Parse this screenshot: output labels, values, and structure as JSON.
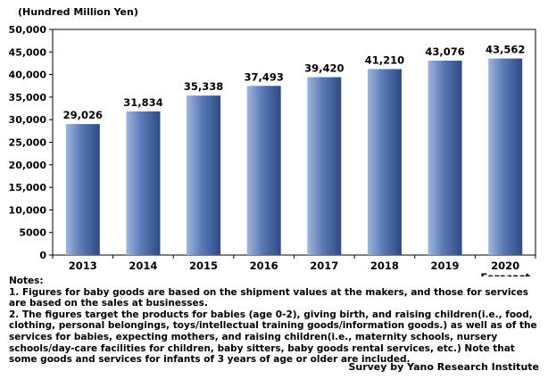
{
  "chart_data": {
    "type": "bar",
    "unit_label": "(Hundred Million Yen)",
    "categories": [
      "2013",
      "2014",
      "2015",
      "2016",
      "2017",
      "2018",
      "2019",
      "2020"
    ],
    "category_sublabels": [
      "",
      "",
      "",
      "",
      "",
      "",
      "",
      "Forecast"
    ],
    "values": [
      29026,
      31834,
      35338,
      37493,
      39420,
      41210,
      43076,
      43562
    ],
    "value_labels": [
      "29,026",
      "31,834",
      "35,338",
      "37,493",
      "39,420",
      "41,210",
      "43,076",
      "43,562"
    ],
    "ylim": [
      0,
      50000
    ],
    "yticks": [
      0,
      5000,
      10000,
      15000,
      20000,
      25000,
      30000,
      35000,
      40000,
      45000,
      50000
    ],
    "ytick_labels": [
      "0",
      "5000",
      "10,000",
      "15,000",
      "20,000",
      "25,000",
      "30,000",
      "35,000",
      "40,000",
      "45,000",
      "50,000"
    ],
    "grid": false,
    "colors": {
      "bar_light": "#9fb6dc",
      "bar_mid": "#5a79b6",
      "bar_dark": "#2e4a82"
    }
  },
  "notes": {
    "heading": "Notes:",
    "items": [
      "1. Figures for baby goods are based on the shipment values at the makers, and those for services are based on the sales at businesses.",
      "2. The figures target the products for babies (age 0-2), giving birth, and raising children(i.e., food, clothing, personal belongings, toys/intellectual training goods/information goods.) as well as of the services for babies, expecting mothers, and raising children(i.e., maternity schools, nursery schools/day-care facilities for children, baby sitters, baby goods rental services, etc.) Note that some goods and services for infants of 3 years of age or older are included."
    ]
  },
  "credit": "Survey by Yano Research Institute"
}
